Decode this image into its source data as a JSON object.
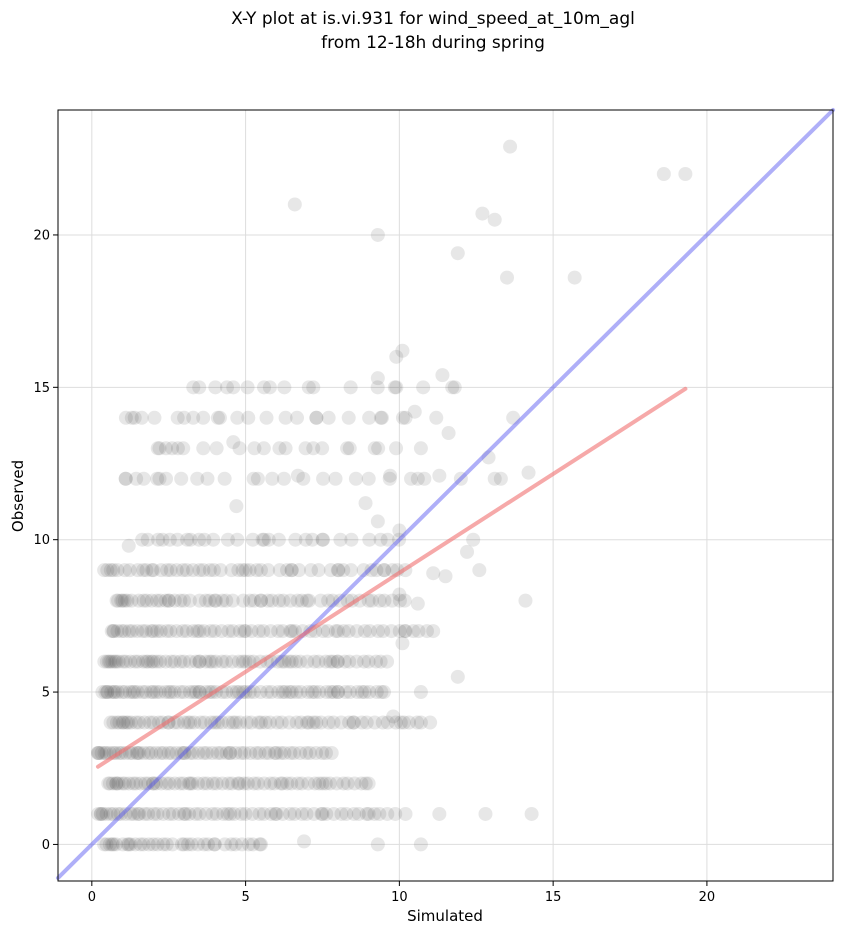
{
  "chart_data": {
    "type": "scatter",
    "title_lines": [
      "X-Y plot at is.vi.931 for wind_speed_at_10m_agl",
      "from 12-18h during spring"
    ],
    "xlabel": "Simulated",
    "ylabel": "Observed",
    "xlim": [
      -1.1,
      24.1
    ],
    "ylim": [
      -1.2,
      24.1
    ],
    "xticks": [
      0,
      5,
      10,
      15,
      20
    ],
    "yticks": [
      0,
      5,
      10,
      15,
      20
    ],
    "grid": true,
    "point_color": "#444444",
    "one_to_one_line": {
      "color": "#4d4df0",
      "from": [
        -1.1,
        -1.1
      ],
      "to": [
        24.1,
        24.1
      ]
    },
    "regression_line": {
      "color": "#f07070",
      "from": [
        0.2,
        2.55
      ],
      "to": [
        19.3,
        14.95
      ]
    },
    "bands": [
      {
        "y": 0,
        "x_min": 0.4,
        "x_max": 5.6,
        "n": 30
      },
      {
        "y": 1,
        "x_min": 0.2,
        "x_max": 10.0,
        "n": 55
      },
      {
        "y": 2,
        "x_min": 0.5,
        "x_max": 9.0,
        "n": 55
      },
      {
        "y": 3,
        "x_min": 0.2,
        "x_max": 7.8,
        "n": 55
      },
      {
        "y": 4,
        "x_min": 0.6,
        "x_max": 10.7,
        "n": 60
      },
      {
        "y": 5,
        "x_min": 0.3,
        "x_max": 9.5,
        "n": 65
      },
      {
        "y": 6,
        "x_min": 0.4,
        "x_max": 9.6,
        "n": 60
      },
      {
        "y": 7,
        "x_min": 0.6,
        "x_max": 11.0,
        "n": 55
      },
      {
        "y": 8,
        "x_min": 0.8,
        "x_max": 10.4,
        "n": 50
      },
      {
        "y": 9,
        "x_min": 0.4,
        "x_max": 10.3,
        "n": 45
      },
      {
        "y": 10,
        "x_min": 1.5,
        "x_max": 10.2,
        "n": 25
      },
      {
        "y": 12,
        "x_min": 1.0,
        "x_max": 11.2,
        "n": 20
      },
      {
        "y": 13,
        "x_min": 2.1,
        "x_max": 10.7,
        "n": 15
      },
      {
        "y": 14,
        "x_min": 1.1,
        "x_max": 11.2,
        "n": 18
      },
      {
        "y": 15,
        "x_min": 3.3,
        "x_max": 11.8,
        "n": 12
      }
    ],
    "points": [
      [
        0.7,
        0
      ],
      [
        1.2,
        0
      ],
      [
        2.0,
        0
      ],
      [
        3.0,
        0
      ],
      [
        4.0,
        0
      ],
      [
        5.5,
        0
      ],
      [
        9.3,
        0
      ],
      [
        10.7,
        0
      ],
      [
        6.9,
        0.1
      ],
      [
        0.3,
        1
      ],
      [
        1.5,
        1
      ],
      [
        3.0,
        1
      ],
      [
        4.5,
        1
      ],
      [
        6.0,
        1
      ],
      [
        7.5,
        1
      ],
      [
        9.0,
        1
      ],
      [
        10.2,
        1
      ],
      [
        11.3,
        1
      ],
      [
        12.8,
        1
      ],
      [
        14.3,
        1
      ],
      [
        0.8,
        2
      ],
      [
        2.0,
        2
      ],
      [
        3.2,
        2
      ],
      [
        4.8,
        2
      ],
      [
        6.2,
        2
      ],
      [
        7.5,
        2
      ],
      [
        9.0,
        2
      ],
      [
        0.2,
        3
      ],
      [
        1.5,
        3
      ],
      [
        3.0,
        3
      ],
      [
        4.5,
        3
      ],
      [
        6.0,
        3
      ],
      [
        7.8,
        3
      ],
      [
        1.0,
        4
      ],
      [
        2.5,
        4
      ],
      [
        4.0,
        4
      ],
      [
        5.5,
        4
      ],
      [
        7.0,
        4
      ],
      [
        8.5,
        4
      ],
      [
        9.8,
        4.2
      ],
      [
        10.7,
        4
      ],
      [
        11.0,
        4
      ],
      [
        0.5,
        5
      ],
      [
        2.0,
        5
      ],
      [
        3.5,
        5
      ],
      [
        5.0,
        5
      ],
      [
        6.5,
        5
      ],
      [
        8.0,
        5
      ],
      [
        9.5,
        5
      ],
      [
        10.7,
        5
      ],
      [
        11.9,
        5.5
      ],
      [
        0.6,
        6
      ],
      [
        2.0,
        6
      ],
      [
        3.5,
        6
      ],
      [
        5.0,
        6
      ],
      [
        6.5,
        6
      ],
      [
        8.0,
        6
      ],
      [
        9.6,
        6
      ],
      [
        10.1,
        6.6
      ],
      [
        0.7,
        7
      ],
      [
        2.0,
        7
      ],
      [
        3.5,
        7
      ],
      [
        5.0,
        7
      ],
      [
        6.5,
        7
      ],
      [
        8.0,
        7
      ],
      [
        10.2,
        7
      ],
      [
        11.1,
        7
      ],
      [
        1.0,
        8
      ],
      [
        2.5,
        8
      ],
      [
        4.0,
        8
      ],
      [
        5.5,
        8
      ],
      [
        7.0,
        8
      ],
      [
        9.0,
        8
      ],
      [
        10.0,
        8.2
      ],
      [
        10.6,
        7.9
      ],
      [
        14.1,
        8
      ],
      [
        0.4,
        9
      ],
      [
        2.0,
        9
      ],
      [
        3.5,
        9
      ],
      [
        5.0,
        9
      ],
      [
        6.5,
        9
      ],
      [
        8.0,
        9
      ],
      [
        9.5,
        9
      ],
      [
        11.1,
        8.9
      ],
      [
        11.5,
        8.8
      ],
      [
        12.2,
        9.6
      ],
      [
        12.4,
        10.0
      ],
      [
        12.6,
        9.0
      ],
      [
        1.2,
        9.8
      ],
      [
        2.3,
        10
      ],
      [
        3.1,
        10
      ],
      [
        5.6,
        10
      ],
      [
        7.5,
        10
      ],
      [
        9.3,
        10.6
      ],
      [
        10.0,
        10.3
      ],
      [
        4.7,
        11.1
      ],
      [
        8.9,
        11.2
      ],
      [
        9.7,
        12.1
      ],
      [
        10.6,
        12.0
      ],
      [
        12.0,
        12.0
      ],
      [
        13.1,
        12.0
      ],
      [
        13.3,
        12.0
      ],
      [
        14.2,
        12.2
      ],
      [
        11.3,
        12.1
      ],
      [
        1.1,
        12.0
      ],
      [
        2.2,
        12.0
      ],
      [
        5.4,
        12.0
      ],
      [
        6.7,
        12.1
      ],
      [
        12.9,
        12.7
      ],
      [
        11.6,
        13.5
      ],
      [
        2.2,
        13.0
      ],
      [
        2.8,
        13.0
      ],
      [
        4.6,
        13.2
      ],
      [
        6.3,
        13.0
      ],
      [
        7.2,
        13.0
      ],
      [
        8.3,
        13.0
      ],
      [
        9.2,
        13.0
      ],
      [
        10.7,
        13.0
      ],
      [
        1.3,
        14
      ],
      [
        3.0,
        14
      ],
      [
        4.1,
        14
      ],
      [
        6.3,
        14.0
      ],
      [
        7.3,
        14.0
      ],
      [
        9.4,
        14.0
      ],
      [
        10.2,
        14.0
      ],
      [
        10.5,
        14.2
      ],
      [
        11.2,
        14.0
      ],
      [
        13.7,
        14.0
      ],
      [
        3.3,
        15
      ],
      [
        4.6,
        15
      ],
      [
        5.6,
        15
      ],
      [
        7.2,
        15
      ],
      [
        9.9,
        15.0
      ],
      [
        11.8,
        15.0
      ],
      [
        11.4,
        15.4
      ],
      [
        9.3,
        15.3
      ],
      [
        9.9,
        16.0
      ],
      [
        10.1,
        16.2
      ],
      [
        13.5,
        18.6
      ],
      [
        15.7,
        18.6
      ],
      [
        11.9,
        19.4
      ],
      [
        9.3,
        20.0
      ],
      [
        12.7,
        20.7
      ],
      [
        13.1,
        20.5
      ],
      [
        6.6,
        21.0
      ],
      [
        18.6,
        22.0
      ],
      [
        19.3,
        22.0
      ],
      [
        13.6,
        22.9
      ]
    ]
  }
}
